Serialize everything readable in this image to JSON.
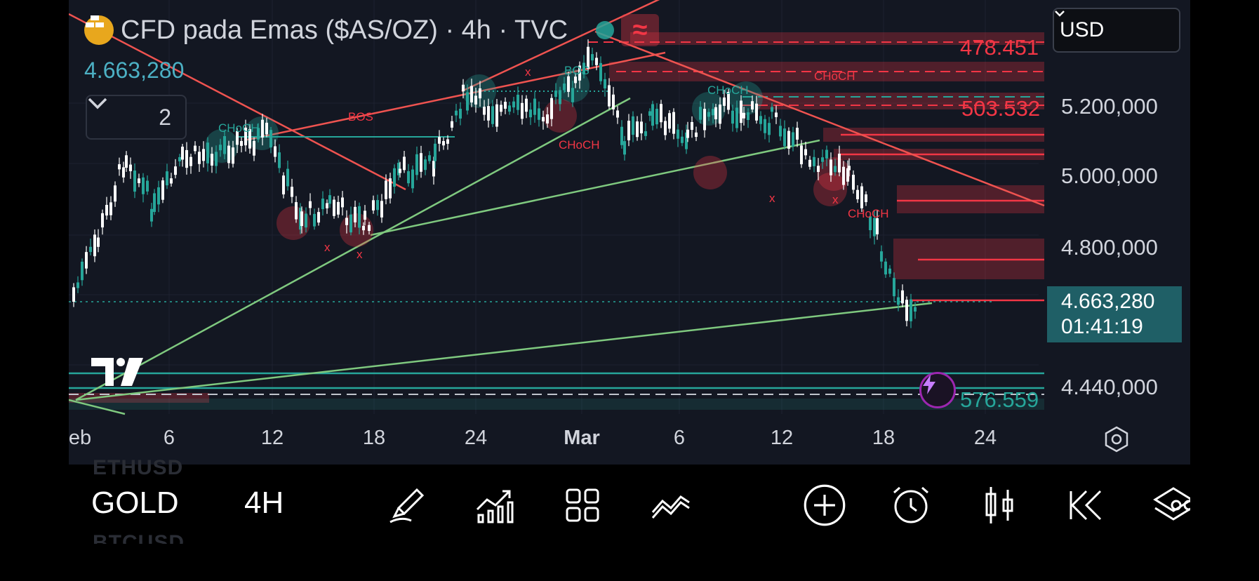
{
  "header": {
    "symbol_title": "CFD pada Emas ($AS/OZ) · 4h · TVC",
    "wave_badge": "≈",
    "last_price": "4.663,280",
    "indicators_count": "2"
  },
  "currency_select": {
    "value": "USD"
  },
  "price_axis": {
    "labels": [
      "5.200,000",
      "5.000,000",
      "4.800,000",
      "4.440,000"
    ],
    "current_price": "4.663,280",
    "countdown": "01:41:19",
    "right_labels": [
      {
        "text": "478.451",
        "color": "#f23645"
      },
      {
        "text": "503.532",
        "color": "#f23645"
      },
      {
        "text": "576.559",
        "color": "#26a69a"
      }
    ]
  },
  "time_axis": {
    "labels": [
      "eb",
      "6",
      "12",
      "18",
      "24",
      "Mar",
      "6",
      "12",
      "18",
      "24"
    ]
  },
  "chart_annotations": {
    "choch_labels": [
      "CHoCH",
      "CHoCH",
      "CHoCH",
      "CHoCH",
      "CHoCH"
    ],
    "bos_labels": [
      "BOS",
      "BOS"
    ],
    "x_marks": [
      "x",
      "x",
      "x",
      "x",
      "x"
    ]
  },
  "colors": {
    "background": "#131722",
    "bull": "#26a69a",
    "bear": "#f23645",
    "trendline_green": "#7fc97f",
    "trendline_red": "#ef5350",
    "accent_teal": "#1f5f66"
  },
  "toolbar": {
    "symbol": "GOLD",
    "interval": "4H",
    "ghost_above": "ETHUSD",
    "ghost_below": "BTCUSD",
    "icons": [
      "brush-icon",
      "indicators-icon",
      "apps-grid-icon",
      "strategy-icon",
      "add-icon",
      "alarm-icon",
      "candles-icon",
      "replay-icon",
      "layers-icon",
      "more-icon"
    ]
  }
}
